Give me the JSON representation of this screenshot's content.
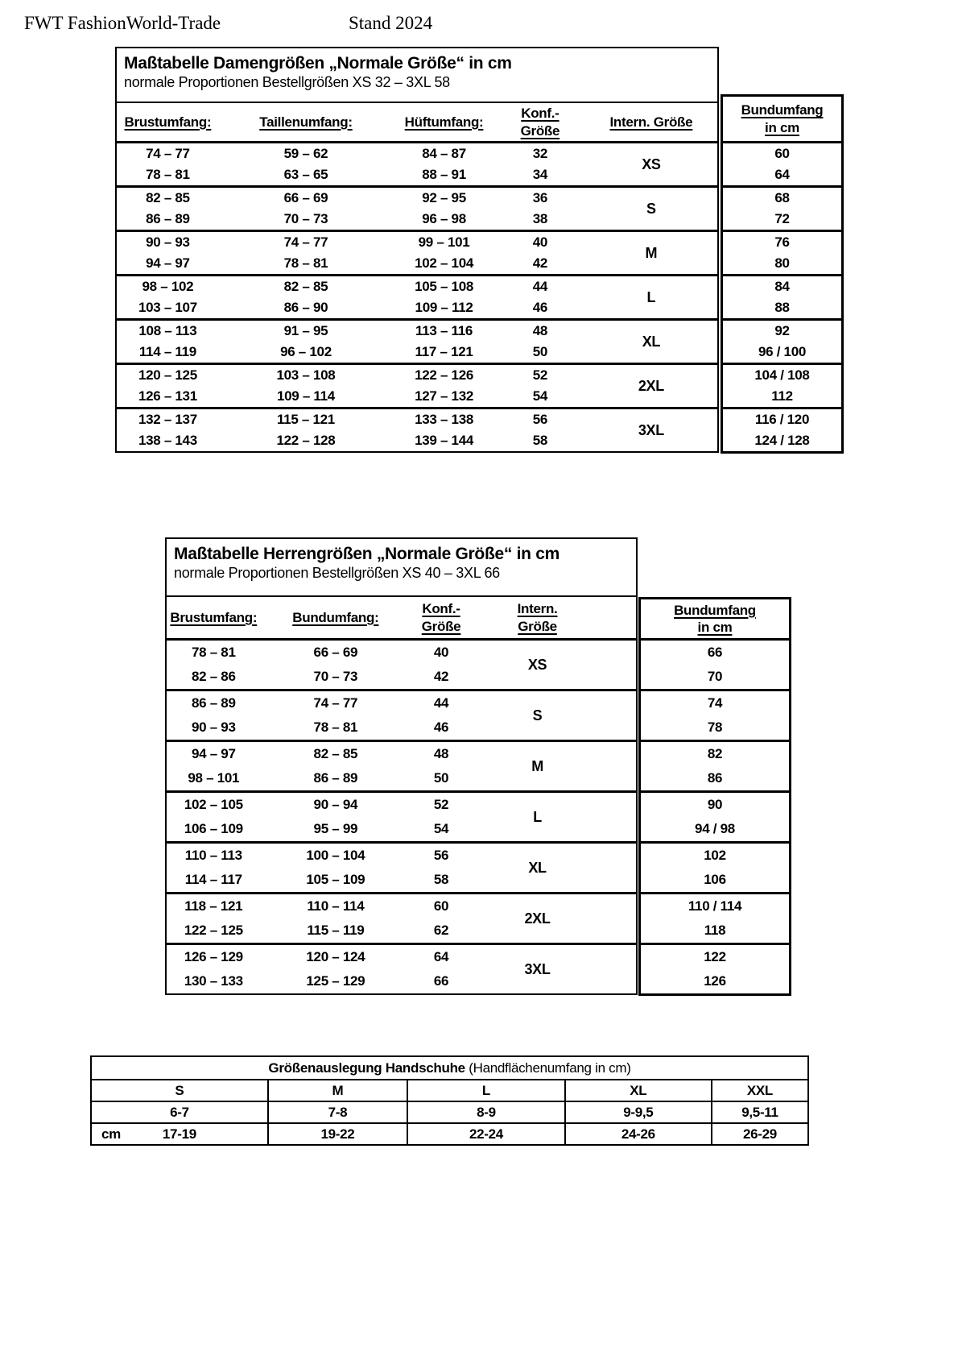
{
  "page_header": {
    "brand": "FWT FashionWorld-Trade",
    "stand": "Stand 2024"
  },
  "women_table": {
    "title": "Maßtabelle Damengrößen „Normale Größe“ in cm",
    "subtitle": "normale Proportionen Bestellgrößen XS 32 – 3XL 58",
    "headers": [
      "Brustumfang:",
      "Taillenumfang:",
      "Hüftumfang:",
      [
        "Konf.-",
        "Größe"
      ],
      "Intern. Größe"
    ],
    "bund_header": [
      "Bundumfang",
      "in cm"
    ],
    "groups": [
      {
        "intl": "XS",
        "rows": [
          [
            "74 – 77",
            "59 – 62",
            "84 – 87",
            "32"
          ],
          [
            "78 – 81",
            "63 – 65",
            "88 – 91",
            "34"
          ]
        ],
        "bund": [
          "60",
          "64"
        ]
      },
      {
        "intl": "S",
        "rows": [
          [
            "82 – 85",
            "66 – 69",
            "92 – 95",
            "36"
          ],
          [
            "86 – 89",
            "70 – 73",
            "96 – 98",
            "38"
          ]
        ],
        "bund": [
          "68",
          "72"
        ]
      },
      {
        "intl": "M",
        "rows": [
          [
            "90 – 93",
            "74 – 77",
            "99 – 101",
            "40"
          ],
          [
            "94 – 97",
            "78 – 81",
            "102 – 104",
            "42"
          ]
        ],
        "bund": [
          "76",
          "80"
        ]
      },
      {
        "intl": "L",
        "rows": [
          [
            "98 – 102",
            "82 – 85",
            "105 – 108",
            "44"
          ],
          [
            "103 – 107",
            "86 – 90",
            "109 – 112",
            "46"
          ]
        ],
        "bund": [
          "84",
          "88"
        ]
      },
      {
        "intl": "XL",
        "rows": [
          [
            "108 – 113",
            "91 – 95",
            "113 – 116",
            "48"
          ],
          [
            "114 – 119",
            "96 – 102",
            "117 – 121",
            "50"
          ]
        ],
        "bund": [
          "92",
          "96  / 100"
        ]
      },
      {
        "intl": "2XL",
        "rows": [
          [
            "120 – 125",
            "103 – 108",
            "122 – 126",
            "52"
          ],
          [
            "126 – 131",
            "109 – 114",
            "127 – 132",
            "54"
          ]
        ],
        "bund": [
          "104 / 108",
          "112"
        ]
      },
      {
        "intl": "3XL",
        "rows": [
          [
            "132 – 137",
            "115 – 121",
            "133 – 138",
            "56"
          ],
          [
            "138 – 143",
            "122 – 128",
            "139 – 144",
            "58"
          ]
        ],
        "bund": [
          "116 / 120",
          "124 / 128"
        ]
      }
    ]
  },
  "men_table": {
    "title": "Maßtabelle Herrengrößen „Normale Größe“ in cm",
    "subtitle": "normale Proportionen Bestellgrößen XS 40 – 3XL 66",
    "headers": [
      "Brustumfang:",
      "Bundumfang:",
      [
        "Konf.-",
        "Größe"
      ],
      [
        "Intern.",
        "Größe"
      ]
    ],
    "bund_header": [
      "Bundumfang",
      "in cm"
    ],
    "groups": [
      {
        "intl": "XS",
        "rows": [
          [
            "78 – 81",
            "66 – 69",
            "40"
          ],
          [
            "82 – 86",
            "70 – 73",
            "42"
          ]
        ],
        "bund": [
          "66",
          "70"
        ]
      },
      {
        "intl": "S",
        "rows": [
          [
            "86 – 89",
            "74 – 77",
            "44"
          ],
          [
            "90 – 93",
            "78 – 81",
            "46"
          ]
        ],
        "bund": [
          "74",
          "78"
        ]
      },
      {
        "intl": "M",
        "rows": [
          [
            "94 – 97",
            "82 – 85",
            "48"
          ],
          [
            "98 – 101",
            "86 – 89",
            "50"
          ]
        ],
        "bund": [
          "82",
          "86"
        ]
      },
      {
        "intl": "L",
        "rows": [
          [
            "102 – 105",
            "90 – 94",
            "52"
          ],
          [
            "106 – 109",
            "95 – 99",
            "54"
          ]
        ],
        "bund": [
          "90",
          "94  /  98"
        ]
      },
      {
        "intl": "XL",
        "rows": [
          [
            "110 – 113",
            "100 – 104",
            "56"
          ],
          [
            "114 – 117",
            "105 – 109",
            "58"
          ]
        ],
        "bund": [
          "102",
          "106"
        ]
      },
      {
        "intl": "2XL",
        "rows": [
          [
            "118 – 121",
            "110 – 114",
            "60"
          ],
          [
            "122 – 125",
            "115 – 119",
            "62"
          ]
        ],
        "bund": [
          "110 / 114",
          "118"
        ]
      },
      {
        "intl": "3XL",
        "rows": [
          [
            "126 – 129",
            "120 – 124",
            "64"
          ],
          [
            "130 – 133",
            "125 – 129",
            "66"
          ]
        ],
        "bund": [
          "122",
          "126"
        ]
      }
    ]
  },
  "glove_table": {
    "title_bold": "Größenauslegung Handschuhe",
    "title_rest": " (Handflächenumfang in cm)",
    "sizes": [
      "S",
      "M",
      "L",
      "XL",
      "XXL"
    ],
    "palm_values": [
      "6-7",
      "7-8",
      "8-9",
      "9-9,5",
      "9,5-11"
    ],
    "unit_label": "cm",
    "cm_values": [
      "17-19",
      "19-22",
      "22-24",
      "24-26",
      "26-29"
    ]
  }
}
